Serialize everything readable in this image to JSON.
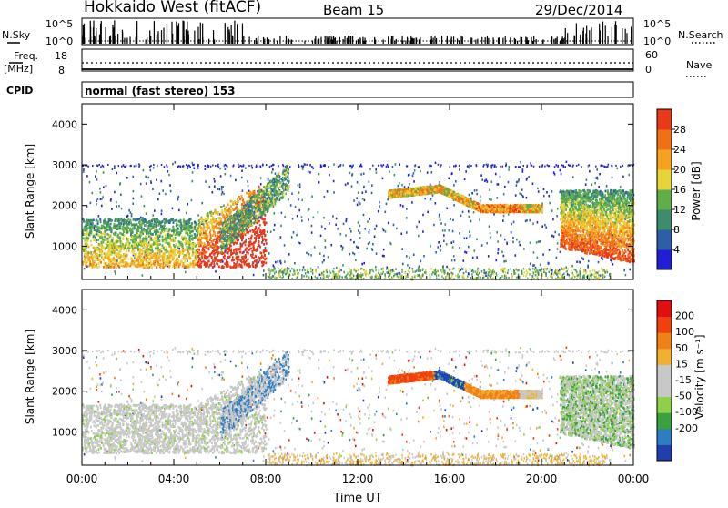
{
  "header": {
    "station": "Hokkaido West (fitACF)",
    "beam": "Beam 15",
    "date": "29/Dec/2014"
  },
  "strips": {
    "nsky_label": "N.Sky",
    "nsky_ticks": [
      "10^5",
      "10^0"
    ],
    "nsearch_label": "N.Search",
    "nsearch_ticks": [
      "10^5",
      "10^0"
    ],
    "freq_label": "Freq.",
    "freq_unit": "[MHz]",
    "freq_ticks": [
      "18",
      "8"
    ],
    "nave_label": "Nave",
    "nave_ticks": [
      "60",
      "0"
    ],
    "cpid_label": "CPID",
    "cpid_value": "normal (fast stereo) 153"
  },
  "colors": {
    "power_scale": [
      "#1f1fd6",
      "#2d5fa8",
      "#3d8c6e",
      "#5fae4a",
      "#e8d43a",
      "#f5a21e",
      "#f07016",
      "#e8391a",
      "#e0101a"
    ],
    "velocity_scale": [
      "#1f3fb0",
      "#2e7dc0",
      "#3aa040",
      "#8fd04a",
      "#c8c8c8",
      "#c8c8c8",
      "#f0b030",
      "#f08018",
      "#f04010",
      "#e01010"
    ]
  },
  "chart_data": [
    {
      "type": "heatmap",
      "panel": "power",
      "ylabel": "Slant Range [km]",
      "ylim": [
        180,
        4500
      ],
      "yticks": [
        "1000",
        "2000",
        "3000",
        "4000"
      ],
      "xticks": [
        "00:00",
        "04:00",
        "08:00",
        "12:00",
        "16:00",
        "20:00",
        "00:00"
      ],
      "colorbar_label": "Power [dB]",
      "colorbar_ticks": [
        "4",
        "8",
        "12",
        "16",
        "20",
        "24",
        "28"
      ],
      "colorbar_range": [
        0,
        32
      ]
    },
    {
      "type": "heatmap",
      "panel": "velocity",
      "ylabel": "Slant Range [km]",
      "ylim": [
        180,
        4500
      ],
      "yticks": [
        "1000",
        "2000",
        "3000",
        "4000"
      ],
      "xticks": [
        "00:00",
        "04:00",
        "08:00",
        "12:00",
        "16:00",
        "20:00",
        "00:00"
      ],
      "xlabel": "Time UT",
      "colorbar_label": "Velocity [m s⁻¹]",
      "colorbar_ticks": [
        "200",
        "100",
        "50",
        "15",
        "-15",
        "-50",
        "-100",
        "-200"
      ]
    }
  ]
}
